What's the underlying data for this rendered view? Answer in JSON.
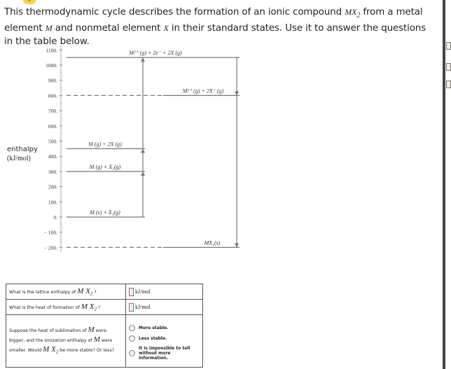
{
  "intro": {
    "part1": "This thermodynamic cycle describes the formation of an ionic compound ",
    "formula": "MX",
    "sub": "2",
    "part2": " from a metal element ",
    "metal": "M",
    "part3": " and nonmetal element ",
    "nonmetal": "X",
    "part4": " in their standard states. Use it to answer the questions in the table below."
  },
  "diagram": {
    "ylabel": "enthalpy",
    "yunit": "(kJ/mol)",
    "ticks": [
      "1100.",
      "1000.",
      "900.",
      "800.",
      "700.",
      "600.",
      "500.",
      "400.",
      "300.",
      "200.",
      "100.",
      "0.",
      "− 100.",
      "− 200."
    ],
    "tick_values": [
      1100,
      1000,
      900,
      800,
      700,
      600,
      500,
      400,
      300,
      200,
      100,
      0,
      -100,
      -200
    ],
    "levels": [
      {
        "value": 1050,
        "label": "M²⁺ (g) + 2e⁻ + 2X (g)"
      },
      {
        "value": 800,
        "label": "M²⁺ (g) + 2X⁻ (g)"
      },
      {
        "value": 450,
        "label": "M (g) + 2X (g)"
      },
      {
        "value": 300,
        "label": "M (g) + X₂(g)"
      },
      {
        "value": 0,
        "label": "M (s) + X₂(g)"
      },
      {
        "value": -200,
        "label": "MX₂(s)"
      }
    ]
  },
  "table": {
    "q1": "What is the lattice enthalpy of ",
    "q2": "What is the heat of formation of ",
    "formula": "M X",
    "sub": "2",
    "qmark": " ?",
    "unit": "kJ/mol",
    "q3a": "Suppose the heat of sublimation of ",
    "q3b": " were bigger, and the ionization enthalpy of ",
    "q3c": " were smaller. Would ",
    "q3d": " be more stable? Or less?",
    "metal": "M",
    "options": [
      "More stable.",
      "Less stable.",
      "It is impossible to tell without more information."
    ]
  }
}
